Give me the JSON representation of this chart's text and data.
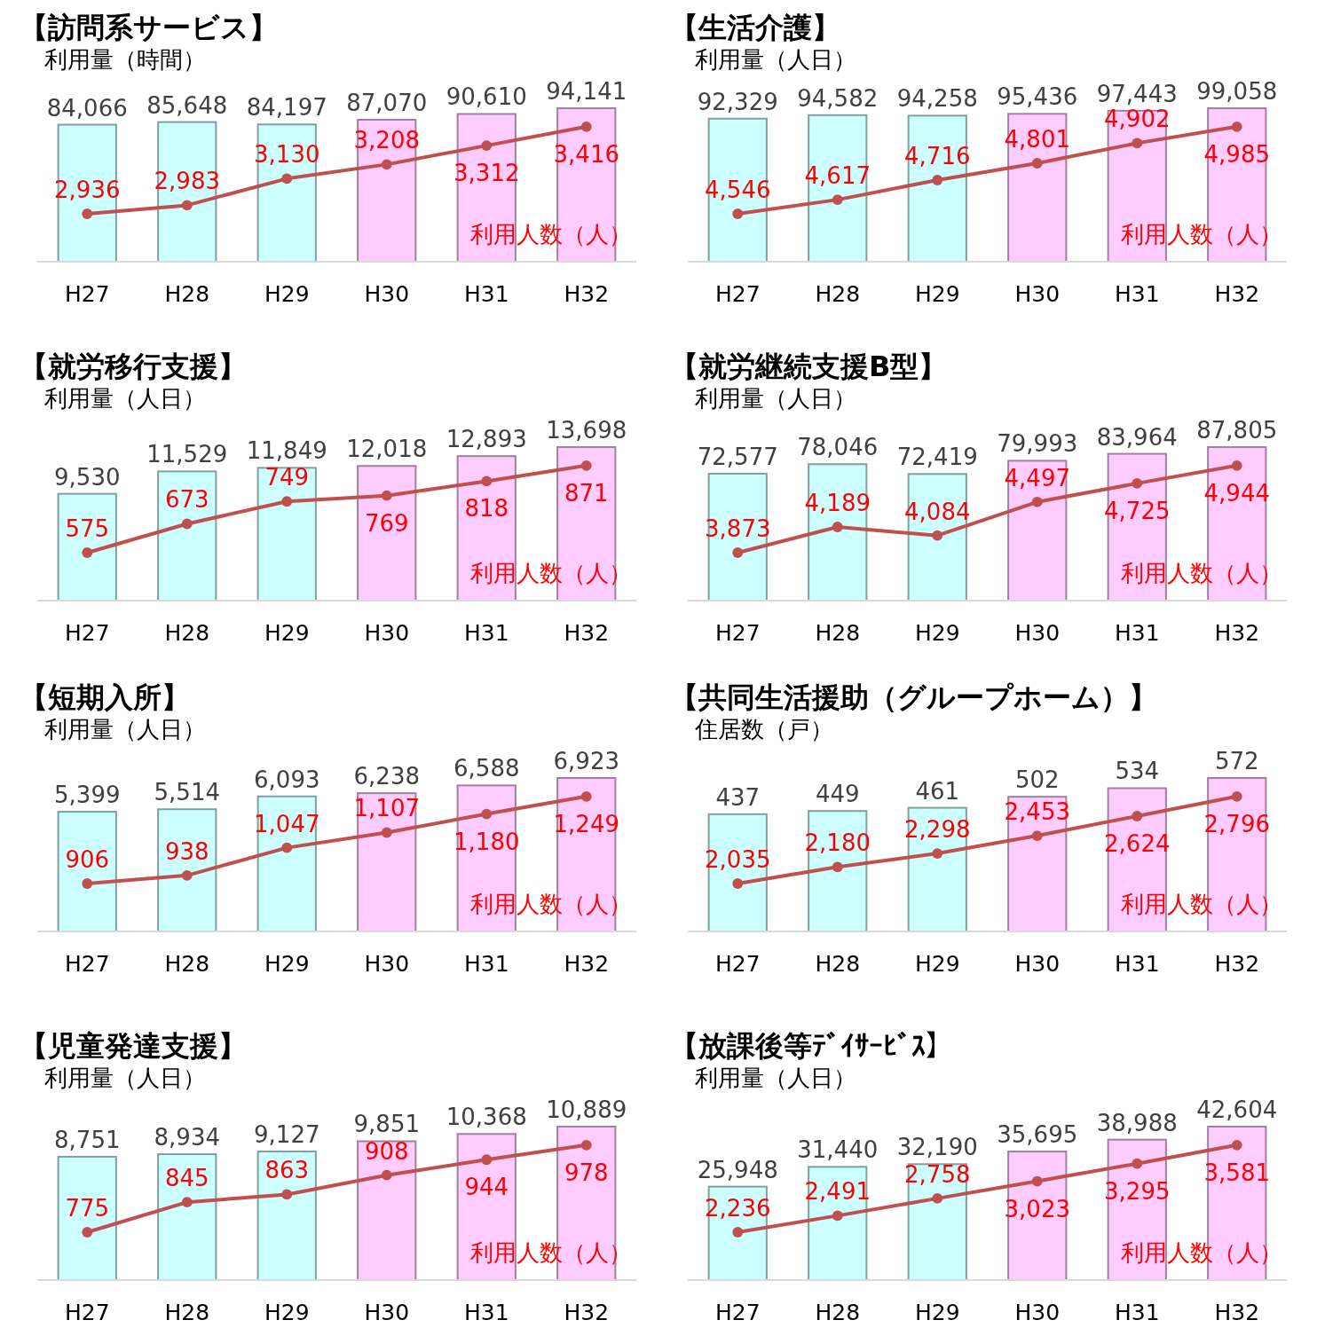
{
  "chart_data": [
    {
      "type": "bar",
      "title": "【訪問系サービス】",
      "ylabel": "利用量（時間）",
      "y2label": "利用人数（人）",
      "categories": [
        "H27",
        "H28",
        "H29",
        "H30",
        "H31",
        "H32"
      ],
      "series": [
        {
          "colors": [
            "#ccffff",
            "#ccffff",
            "#ccffff",
            "#ffccff",
            "#ffccff",
            "#ffccff"
          ],
          "values": [
            84066,
            85648,
            84197,
            87070,
            90610,
            94141
          ],
          "value_labels": [
            "84,066",
            "85,648",
            "84,197",
            "87,070",
            "90,610",
            "94,141"
          ]
        },
        {
          "type": "line",
          "axis": "y2",
          "color": "#c0504d",
          "values": [
            2936,
            2983,
            3130,
            3208,
            3312,
            3416
          ],
          "value_labels": [
            "2,936",
            "2,983",
            "3,130",
            "3,208",
            "3,312",
            "3,416"
          ]
        }
      ],
      "marker": "circle"
    },
    {
      "type": "bar",
      "title": "【生活介護】",
      "ylabel": "利用量（人日）",
      "y2label": "利用人数（人）",
      "categories": [
        "H27",
        "H28",
        "H29",
        "H30",
        "H31",
        "H32"
      ],
      "series": [
        {
          "colors": [
            "#ccffff",
            "#ccffff",
            "#ccffff",
            "#ffccff",
            "#ffccff",
            "#ffccff"
          ],
          "values": [
            92329,
            94582,
            94258,
            95436,
            97443,
            99058
          ],
          "value_labels": [
            "92,329",
            "94,582",
            "94,258",
            "95,436",
            "97,443",
            "99,058"
          ]
        },
        {
          "type": "line",
          "axis": "y2",
          "color": "#c0504d",
          "values": [
            4546,
            4617,
            4716,
            4801,
            4902,
            4985
          ],
          "value_labels": [
            "4,546",
            "4,617",
            "4,716",
            "4,801",
            "4,902",
            "4,985"
          ]
        }
      ],
      "marker": "circle"
    },
    {
      "type": "bar",
      "title": "【就労移行支援】",
      "ylabel": "利用量（人日）",
      "y2label": "利用人数（人）",
      "categories": [
        "H27",
        "H28",
        "H29",
        "H30",
        "H31",
        "H32"
      ],
      "series": [
        {
          "colors": [
            "#ccffff",
            "#ccffff",
            "#ccffff",
            "#ffccff",
            "#ffccff",
            "#ffccff"
          ],
          "values": [
            9530,
            11529,
            11849,
            12018,
            12893,
            13698
          ],
          "value_labels": [
            "9,530",
            "11,529",
            "11,849",
            "12,018",
            "12,893",
            "13,698"
          ]
        },
        {
          "type": "line",
          "axis": "y2",
          "color": "#c0504d",
          "values": [
            575,
            673,
            749,
            769,
            818,
            871
          ],
          "value_labels": [
            "575",
            "673",
            "749",
            "769",
            "818",
            "871"
          ]
        }
      ],
      "marker": "circle"
    },
    {
      "type": "bar",
      "title": "【就労継続支援B型】",
      "ylabel": "利用量（人日）",
      "y2label": "利用人数（人）",
      "categories": [
        "H27",
        "H28",
        "H29",
        "H30",
        "H31",
        "H32"
      ],
      "series": [
        {
          "colors": [
            "#ccffff",
            "#ccffff",
            "#ccffff",
            "#ffccff",
            "#ffccff",
            "#ffccff"
          ],
          "values": [
            72577,
            78046,
            72419,
            79993,
            83964,
            87805
          ],
          "value_labels": [
            "72,577",
            "78,046",
            "72,419",
            "79,993",
            "83,964",
            "87,805"
          ]
        },
        {
          "type": "line",
          "axis": "y2",
          "color": "#c0504d",
          "values": [
            3873,
            4189,
            4084,
            4497,
            4725,
            4944
          ],
          "value_labels": [
            "3,873",
            "4,189",
            "4,084",
            "4,497",
            "4,725",
            "4,944"
          ]
        }
      ],
      "marker": "circle"
    },
    {
      "type": "bar",
      "title": "【短期入所】",
      "ylabel": "利用量（人日）",
      "y2label": "利用人数（人）",
      "categories": [
        "H27",
        "H28",
        "H29",
        "H30",
        "H31",
        "H32"
      ],
      "series": [
        {
          "colors": [
            "#ccffff",
            "#ccffff",
            "#ccffff",
            "#ffccff",
            "#ffccff",
            "#ffccff"
          ],
          "values": [
            5399,
            5514,
            6093,
            6238,
            6588,
            6923
          ],
          "value_labels": [
            "5,399",
            "5,514",
            "6,093",
            "6,238",
            "6,588",
            "6,923"
          ]
        },
        {
          "type": "line",
          "axis": "y2",
          "color": "#c0504d",
          "values": [
            906,
            938,
            1047,
            1107,
            1180,
            1249
          ],
          "value_labels": [
            "906",
            "938",
            "1,047",
            "1,107",
            "1,180",
            "1,249"
          ]
        }
      ],
      "marker": "circle"
    },
    {
      "type": "bar",
      "title": "【共同生活援助（グループホーム）】",
      "ylabel": "住居数（戸）",
      "y2label": "利用人数（人）",
      "categories": [
        "H27",
        "H28",
        "H29",
        "H30",
        "H31",
        "H32"
      ],
      "series": [
        {
          "colors": [
            "#ccffff",
            "#ccffff",
            "#ccffff",
            "#ffccff",
            "#ffccff",
            "#ffccff"
          ],
          "values": [
            437,
            449,
            461,
            502,
            534,
            572
          ],
          "value_labels": [
            "437",
            "449",
            "461",
            "502",
            "534",
            "572"
          ]
        },
        {
          "type": "line",
          "axis": "y2",
          "color": "#c0504d",
          "values": [
            2035,
            2180,
            2298,
            2453,
            2624,
            2796
          ],
          "value_labels": [
            "2,035",
            "2,180",
            "2,298",
            "2,453",
            "2,624",
            "2,796"
          ]
        }
      ],
      "marker": "circle"
    },
    {
      "type": "bar",
      "title": "【児童発達支援】",
      "ylabel": "利用量（人日）",
      "y2label": "利用人数（人）",
      "categories": [
        "H27",
        "H28",
        "H29",
        "H30",
        "H31",
        "H32"
      ],
      "series": [
        {
          "colors": [
            "#ccffff",
            "#ccffff",
            "#ccffff",
            "#ffccff",
            "#ffccff",
            "#ffccff"
          ],
          "values": [
            8751,
            8934,
            9127,
            9851,
            10368,
            10889
          ],
          "value_labels": [
            "8,751",
            "8,934",
            "9,127",
            "9,851",
            "10,368",
            "10,889"
          ]
        },
        {
          "type": "line",
          "axis": "y2",
          "color": "#c0504d",
          "values": [
            775,
            845,
            863,
            908,
            944,
            978
          ],
          "value_labels": [
            "775",
            "845",
            "863",
            "908",
            "944",
            "978"
          ]
        }
      ],
      "marker": "circle"
    },
    {
      "type": "bar",
      "title": "【放課後等ﾃﾞｲｻｰﾋﾞｽ】",
      "ylabel": "利用量（人日）",
      "y2label": "利用人数（人）",
      "categories": [
        "H27",
        "H28",
        "H29",
        "H30",
        "H31",
        "H32"
      ],
      "series": [
        {
          "colors": [
            "#ccffff",
            "#ccffff",
            "#ccffff",
            "#ffccff",
            "#ffccff",
            "#ffccff"
          ],
          "values": [
            25948,
            31440,
            32190,
            35695,
            38988,
            42604
          ],
          "value_labels": [
            "25,948",
            "31,440",
            "32,190",
            "35,695",
            "38,988",
            "42,604"
          ]
        },
        {
          "type": "line",
          "axis": "y2",
          "color": "#c0504d",
          "values": [
            2236,
            2491,
            2758,
            3023,
            3295,
            3581
          ],
          "value_labels": [
            "2,236",
            "2,491",
            "2,758",
            "3,023",
            "3,295",
            "3,581"
          ]
        }
      ],
      "marker": "circle"
    }
  ]
}
